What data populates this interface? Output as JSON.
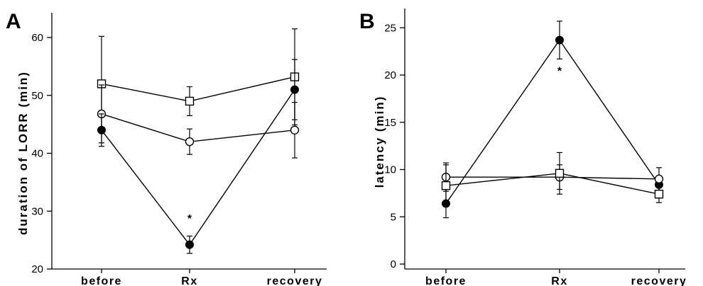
{
  "chart_data": [
    {
      "type": "line",
      "panel_label": "A",
      "ylabel": "duration  of  LORR  (min)",
      "xlabel": "",
      "categories": [
        "before",
        "Rx",
        "recovery"
      ],
      "ylim": [
        20,
        64
      ],
      "yticks": [
        20,
        30,
        40,
        50,
        60
      ],
      "grid": false,
      "series": [
        {
          "marker": "open-square",
          "values": [
            52,
            49,
            53.2
          ],
          "errors": [
            8.2,
            2.5,
            8.3
          ]
        },
        {
          "marker": "open-circle",
          "values": [
            46.8,
            42,
            44
          ],
          "errors": [
            5,
            2.2,
            4.8
          ]
        },
        {
          "marker": "filled-circle",
          "values": [
            44,
            24.2,
            51
          ],
          "errors": [
            2.8,
            1.5,
            5.2
          ]
        }
      ],
      "annotations": [
        {
          "text": "*",
          "category": "Rx",
          "y": 28.8
        }
      ]
    },
    {
      "type": "line",
      "panel_label": "B",
      "ylabel": "latency   (min)",
      "xlabel": "",
      "categories": [
        "before",
        "Rx",
        "recovery"
      ],
      "ylim": [
        0,
        27
      ],
      "yticks": [
        0,
        5,
        10,
        15,
        20,
        25
      ],
      "grid": false,
      "series": [
        {
          "marker": "filled-circle",
          "values": [
            6.4,
            23.7,
            8.4
          ],
          "errors": [
            1.5,
            2,
            0.9
          ]
        },
        {
          "marker": "open-circle",
          "values": [
            9.2,
            9.2,
            9
          ],
          "errors": [
            1.5,
            1.3,
            1.2
          ]
        },
        {
          "marker": "open-square",
          "values": [
            8.3,
            9.6,
            7.4
          ],
          "errors": [
            2.2,
            2.2,
            0.9
          ]
        }
      ],
      "annotations": [
        {
          "text": "*",
          "category": "Rx",
          "y": 20.5
        }
      ]
    }
  ]
}
